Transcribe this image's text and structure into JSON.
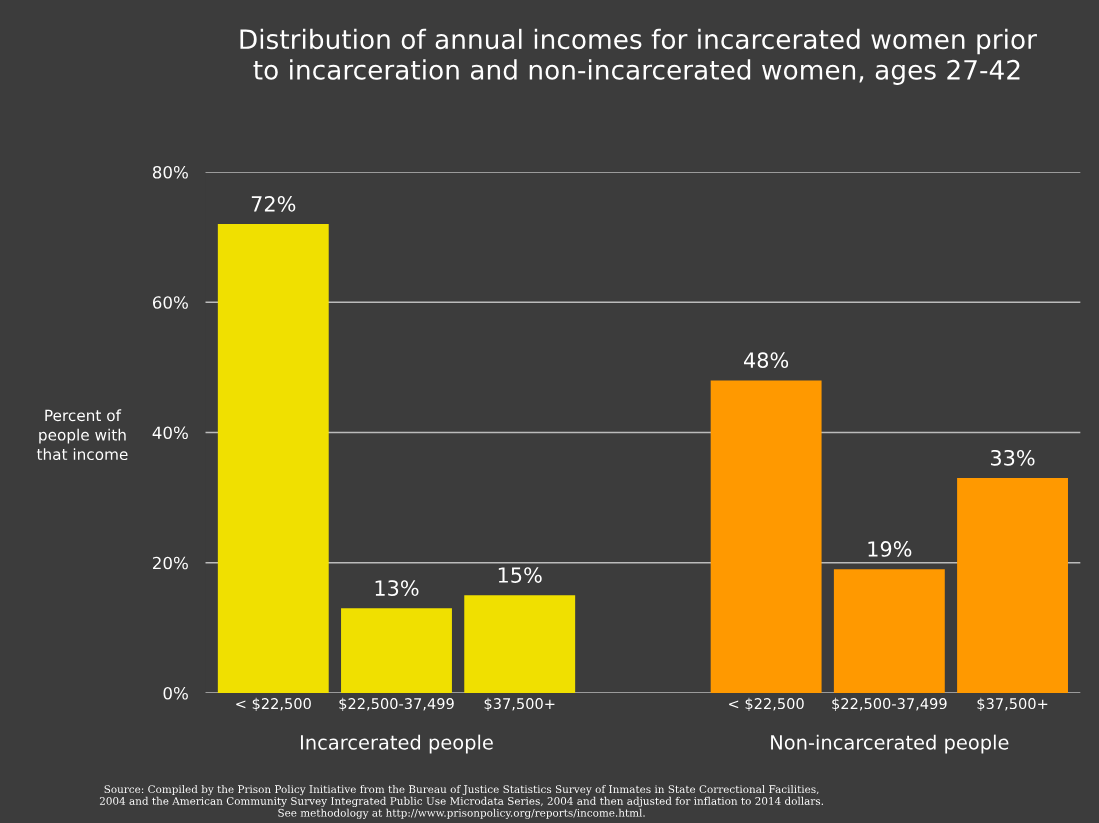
{
  "chart_data": {
    "type": "bar",
    "title": "Distribution of annual incomes for incarcerated women prior\nto incarceration and non-incarcerated women, ages 27-42",
    "ylabel": "Percent of\npeople with\nthat income",
    "categories": [
      "< $22,500",
      "$22,500-37,499",
      "$37,500+",
      null,
      "< $22,500",
      "$22,500-37,499",
      "$37,500+"
    ],
    "values": [
      72,
      13,
      15,
      null,
      48,
      19,
      33
    ],
    "colors": [
      "#f0e000",
      "#f0e000",
      "#f0e000",
      null,
      "#ff9900",
      "#ff9900",
      "#ff9900"
    ],
    "value_labels": [
      "72%",
      "13%",
      "15%",
      null,
      "48%",
      "19%",
      "33%"
    ],
    "ylim": [
      0,
      80
    ],
    "yticks": [
      {
        "value": 0,
        "label": "0%"
      },
      {
        "value": 20,
        "label": "20%"
      },
      {
        "value": 40,
        "label": "40%"
      },
      {
        "value": 60,
        "label": "60%"
      },
      {
        "value": 80,
        "label": "80%"
      }
    ],
    "grid": "y",
    "annotations": [
      "Incarcerated people",
      "Non-incarcerated people",
      "Source: Compiled by the Prison Policy Initiative from the Bureau of Justice Statistics Survey of Inmates in State Correctional Facilities,\n2004 and the American Community Survey Integrated Public Use Microdata Series, 2004 and then adjusted for inflation to 2014 dollars.\nSee methodology at http://www.prisonpolicy.org/reports/income.html."
    ]
  }
}
